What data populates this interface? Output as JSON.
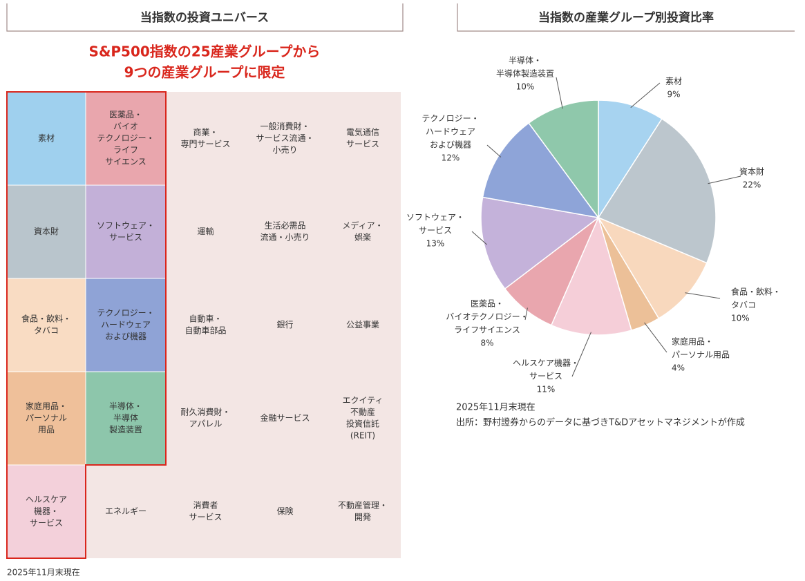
{
  "universe": {
    "title": "当指数の投資ユニバース",
    "subtitle": [
      "S&P500指数の25産業グループから",
      "9つの産業グループに限定"
    ],
    "rows": [
      [
        [
          "素材"
        ],
        [
          "医薬品・",
          "バイオ",
          "テクノロジー・",
          "ライフ",
          "サイエンス"
        ],
        [
          "商業・",
          "専門サービス"
        ],
        [
          "一般消費財・",
          "サービス流通・",
          "小売り"
        ],
        [
          "電気通信",
          "サービス"
        ]
      ],
      [
        [
          "資本財"
        ],
        [
          "ソフトウェア・",
          "サービス"
        ],
        [
          "運輸"
        ],
        [
          "生活必需品",
          "流通・小売り"
        ],
        [
          "メディア・",
          "娯楽"
        ]
      ],
      [
        [
          "食品・飲料・",
          "タバコ"
        ],
        [
          "テクノロジー・",
          "ハードウェア",
          "および機器"
        ],
        [
          "自動車・",
          "自動車部品"
        ],
        [
          "銀行"
        ],
        [
          "公益事業"
        ]
      ],
      [
        [
          "家庭用品・",
          "パーソナル",
          "用品"
        ],
        [
          "半導体・",
          "半導体",
          "製造装置"
        ],
        [
          "耐久消費財・",
          "アパレル"
        ],
        [
          "金融サービス"
        ],
        [
          "エクイティ",
          "不動産",
          "投資信託",
          "(REIT)"
        ]
      ],
      [
        [
          "ヘルスケア",
          "機器・",
          "サービス"
        ],
        [
          "エネルギー"
        ],
        [
          "消費者",
          "サービス"
        ],
        [
          "保険"
        ],
        [
          "不動産管理・",
          "開発"
        ]
      ]
    ],
    "note": "2025年11月末現在"
  },
  "chart_data": {
    "type": "pie",
    "title": "当指数の産業グループ別投資比率",
    "categories": [
      [
        "素材"
      ],
      [
        "資本財"
      ],
      [
        "食品・飲料・",
        "タバコ"
      ],
      [
        "家庭用品・",
        "パーソナル用品"
      ],
      [
        "ヘルスケア機器・",
        "サービス"
      ],
      [
        "医薬品・",
        "バイオテクノロジー・",
        "ライフサイエンス"
      ],
      [
        "ソフトウェア・",
        "サービス"
      ],
      [
        "テクノロジー・",
        "ハードウェア",
        "および機器"
      ],
      [
        "半導体・",
        "半導体製造装置"
      ]
    ],
    "values": [
      9,
      22,
      10,
      4,
      11,
      8,
      13,
      12,
      10
    ],
    "value_labels": [
      "9%",
      "22%",
      "10%",
      "4%",
      "11%",
      "8%",
      "13%",
      "12%",
      "10%"
    ],
    "colors": [
      "#a7d3f0",
      "#bcc6cd",
      "#f8d8bd",
      "#ecc098",
      "#f5ced8",
      "#e9a6ae",
      "#c4b2da",
      "#8ea4d8",
      "#8fc8ab"
    ],
    "notes": [
      "2025年11月末現在",
      "出所：野村證券からのデータに基づきT&Dアセットマネジメントが作成"
    ]
  }
}
